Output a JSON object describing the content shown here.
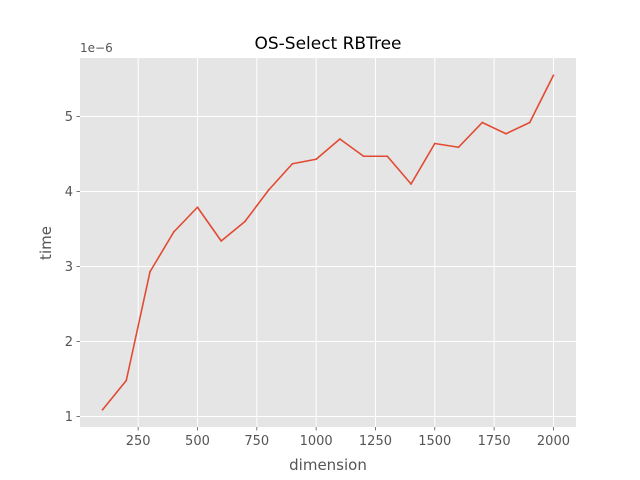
{
  "chart_data": {
    "type": "line",
    "title": "OS-Select RBTree",
    "xlabel": "dimension",
    "ylabel": "time",
    "y_offset_label": "1e−6",
    "x_ticks": [
      {
        "value": 250,
        "label": "250"
      },
      {
        "value": 500,
        "label": "500"
      },
      {
        "value": 750,
        "label": "750"
      },
      {
        "value": 1000,
        "label": "1000"
      },
      {
        "value": 1250,
        "label": "1250"
      },
      {
        "value": 1500,
        "label": "1500"
      },
      {
        "value": 1750,
        "label": "1750"
      },
      {
        "value": 2000,
        "label": "2000"
      }
    ],
    "y_ticks": [
      {
        "value": 1,
        "label": "1"
      },
      {
        "value": 2,
        "label": "2"
      },
      {
        "value": 3,
        "label": "3"
      },
      {
        "value": 4,
        "label": "4"
      },
      {
        "value": 5,
        "label": "5"
      }
    ],
    "xlim": [
      5,
      2095
    ],
    "ylim": [
      0.86,
      5.78
    ],
    "grid": true,
    "background": "#e5e5e5",
    "series": [
      {
        "color": "#e24a33",
        "x": [
          100,
          200,
          300,
          400,
          500,
          600,
          700,
          800,
          900,
          1000,
          1100,
          1200,
          1300,
          1400,
          1500,
          1600,
          1700,
          1800,
          1900,
          2000
        ],
        "y": [
          1.09,
          1.48,
          2.93,
          3.46,
          3.79,
          3.34,
          3.6,
          4.02,
          4.37,
          4.43,
          4.7,
          4.47,
          4.47,
          4.1,
          4.64,
          4.59,
          4.92,
          4.77,
          4.92,
          5.55
        ]
      }
    ]
  }
}
